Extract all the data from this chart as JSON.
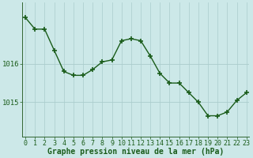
{
  "x": [
    0,
    1,
    2,
    3,
    4,
    5,
    6,
    7,
    8,
    9,
    10,
    11,
    12,
    13,
    14,
    15,
    16,
    17,
    18,
    19,
    20,
    21,
    22,
    23
  ],
  "y": [
    1017.2,
    1016.9,
    1016.9,
    1016.35,
    1015.8,
    1015.7,
    1015.7,
    1015.85,
    1016.05,
    1016.1,
    1016.6,
    1016.65,
    1016.6,
    1016.2,
    1015.75,
    1015.5,
    1015.5,
    1015.25,
    1015.0,
    1014.65,
    1014.65,
    1014.75,
    1015.05,
    1015.25
  ],
  "line_color": "#1a5c1a",
  "marker": "+",
  "marker_size": 4,
  "marker_lw": 1.2,
  "bg_color": "#cce8e8",
  "vgrid_color": "#aacccc",
  "hgrid_color": "#aacccc",
  "xlabel": "Graphe pression niveau de la mer (hPa)",
  "xlabel_color": "#1a5c1a",
  "tick_label_color": "#1a5c1a",
  "axis_color": "#336633",
  "ylim": [
    1014.1,
    1017.6
  ],
  "yticks": [
    1015.0,
    1016.0
  ],
  "xticks": [
    0,
    1,
    2,
    3,
    4,
    5,
    6,
    7,
    8,
    9,
    10,
    11,
    12,
    13,
    14,
    15,
    16,
    17,
    18,
    19,
    20,
    21,
    22,
    23
  ],
  "font_size": 6.5,
  "xlabel_font_size": 7.0,
  "line_width": 1.0
}
